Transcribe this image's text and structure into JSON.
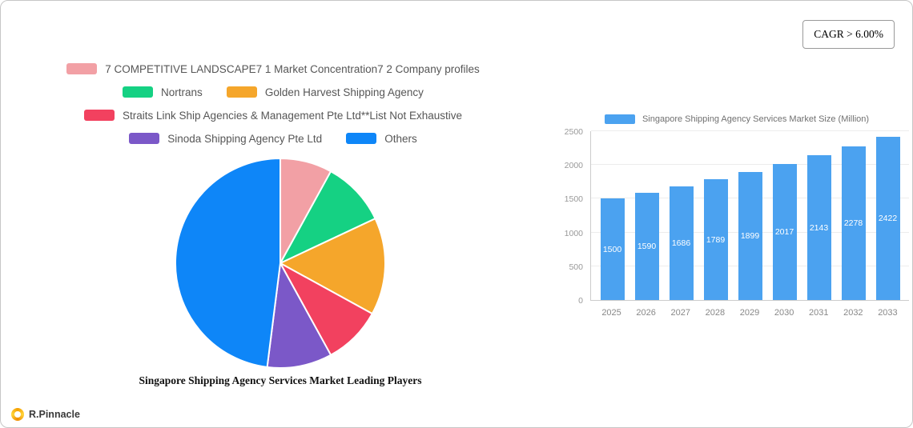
{
  "cagr_label": "CAGR > 6.00%",
  "legend_rows": [
    [
      {
        "color": "#F2A0A5",
        "label": "7  COMPETITIVE LANDSCAPE7 1 Market Concentration7 2 Company profiles"
      }
    ],
    [
      {
        "color": "#15D183",
        "label": "Nortrans"
      },
      {
        "color": "#F5A62B",
        "label": "Golden Harvest Shipping Agency"
      }
    ],
    [
      {
        "color": "#F2415F",
        "label": "Straits Link Ship Agencies & Management Pte Ltd**List Not Exhaustive"
      }
    ],
    [
      {
        "color": "#7B58C8",
        "label": "Sinoda Shipping Agency Pte Ltd"
      },
      {
        "color": "#0E86F8",
        "label": "Others"
      }
    ]
  ],
  "chart_data": [
    {
      "type": "pie",
      "title": "Singapore Shipping Agency Services Market Leading Players",
      "labels": [
        "7 COMPETITIVE LANDSCAPE 7 1 Market Concentration 7 2 Company profiles",
        "Nortrans",
        "Golden Harvest Shipping Agency",
        "Straits Link Ship Agencies & Management Pte Ltd**List Not Exhaustive",
        "Sinoda Shipping Agency Pte Ltd",
        "Others"
      ],
      "values": [
        8,
        10,
        15,
        9,
        10,
        48
      ],
      "colors": [
        "#F2A0A5",
        "#15D183",
        "#F5A62B",
        "#F2415F",
        "#7B58C8",
        "#0E86F8"
      ],
      "note": "slice sizes estimated from pixels; no value labels shown"
    },
    {
      "type": "bar",
      "legend": "Singapore Shipping Agency Services Market Size (Million)",
      "categories": [
        "2025",
        "2026",
        "2027",
        "2028",
        "2029",
        "2030",
        "2031",
        "2032",
        "2033"
      ],
      "values": [
        1500,
        1590,
        1686,
        1789,
        1899,
        2017,
        2143,
        2278,
        2422
      ],
      "ylim": [
        0,
        2500
      ],
      "yticks": [
        0,
        500,
        1000,
        1500,
        2000,
        2500
      ],
      "bar_color": "#4BA2F0",
      "grid": true,
      "legend_position": "top"
    }
  ],
  "footer": {
    "brand": "R.Pinnacle"
  }
}
